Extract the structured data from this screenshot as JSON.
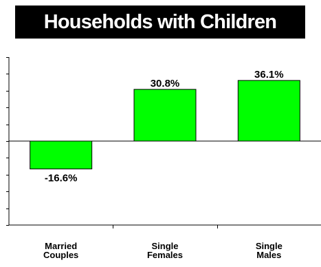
{
  "header": {
    "title": "Households with Children"
  },
  "colors": {
    "bar_fill": "#00ff00",
    "bar_stroke": "#000000",
    "title_bg": "#000000",
    "title_fg": "#ffffff"
  },
  "chart_data": {
    "type": "bar",
    "title": "Households with Children",
    "categories": [
      "Married Couples",
      "Single Females",
      "Single Males"
    ],
    "category_lines": [
      [
        "Married",
        "Couples"
      ],
      [
        "Single",
        "Females"
      ],
      [
        "Single",
        "Males"
      ]
    ],
    "values": [
      -16.6,
      30.8,
      36.1
    ],
    "data_labels": [
      "-16.6%",
      "30.8%",
      "36.1%"
    ],
    "xlabel": "",
    "ylabel": "",
    "ylim": [
      -50,
      50
    ],
    "y_tick_step": 10,
    "grid": false,
    "legend": "none"
  }
}
